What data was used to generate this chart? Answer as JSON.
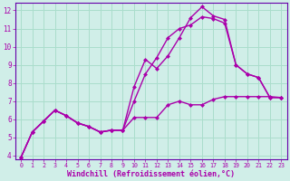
{
  "xlabel": "Windchill (Refroidissement éolien,°C)",
  "xlim": [
    -0.5,
    23.5
  ],
  "ylim": [
    3.8,
    12.4
  ],
  "xticks": [
    0,
    1,
    2,
    3,
    4,
    5,
    6,
    7,
    8,
    9,
    10,
    11,
    12,
    13,
    14,
    15,
    16,
    17,
    18,
    19,
    20,
    21,
    22,
    23
  ],
  "yticks": [
    4,
    5,
    6,
    7,
    8,
    9,
    10,
    11,
    12
  ],
  "bg_color": "#d0eee8",
  "line_color": "#aa00aa",
  "grid_color": "#aaddcc",
  "spine_color": "#6600aa",
  "line1_x": [
    0,
    1,
    2,
    3,
    4,
    5,
    6,
    7,
    8,
    9,
    10,
    11,
    12,
    13,
    14,
    15,
    16,
    17,
    18,
    19,
    20,
    21,
    22,
    23
  ],
  "line1_y": [
    3.9,
    5.3,
    5.9,
    6.5,
    6.2,
    5.8,
    5.6,
    5.3,
    5.4,
    5.4,
    6.1,
    6.1,
    6.1,
    6.8,
    7.0,
    6.8,
    6.8,
    7.1,
    7.25,
    7.25,
    7.25,
    7.25,
    7.25,
    7.2
  ],
  "line2_x": [
    0,
    1,
    2,
    3,
    4,
    5,
    6,
    7,
    8,
    9,
    10,
    11,
    12,
    13,
    14,
    15,
    16,
    17,
    18,
    19,
    20,
    21,
    22,
    23
  ],
  "line2_y": [
    3.9,
    5.3,
    5.9,
    6.5,
    6.2,
    5.8,
    5.6,
    5.3,
    5.4,
    5.4,
    7.8,
    9.3,
    8.8,
    9.5,
    10.5,
    11.6,
    12.2,
    11.7,
    11.5,
    9.0,
    8.5,
    8.3,
    7.2,
    7.2
  ],
  "line3_x": [
    0,
    1,
    2,
    3,
    4,
    5,
    6,
    7,
    8,
    9,
    10,
    11,
    12,
    13,
    14,
    15,
    16,
    17,
    18,
    19,
    20,
    21,
    22,
    23
  ],
  "line3_y": [
    3.9,
    5.3,
    5.9,
    6.5,
    6.2,
    5.8,
    5.6,
    5.3,
    5.4,
    5.4,
    7.0,
    8.5,
    9.4,
    10.5,
    11.0,
    11.2,
    11.65,
    11.55,
    11.3,
    9.0,
    8.5,
    8.3,
    7.2,
    7.2
  ],
  "marker": "D",
  "markersize": 2.5,
  "linewidth": 1.0,
  "tick_fontsize": 5.5,
  "xlabel_fontsize": 6.0
}
